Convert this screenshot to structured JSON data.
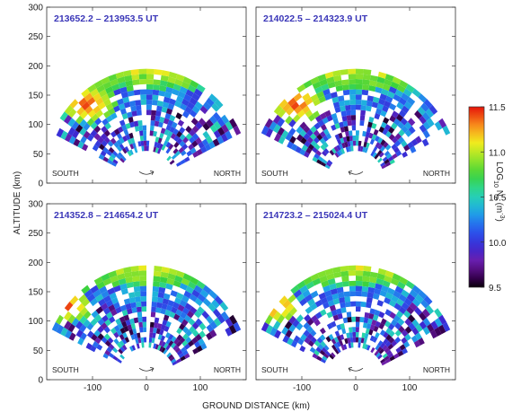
{
  "chart_data": {
    "type": "heatmap",
    "ylabel": "ALTITUDE (km)",
    "xlabel": "GROUND DISTANCE (km)",
    "x_ticks": [
      "-100",
      "0",
      "100"
    ],
    "y_ticks": [
      "0",
      "50",
      "100",
      "150",
      "200",
      "250",
      "300"
    ],
    "xlim": [
      -185,
      185
    ],
    "ylim": [
      0,
      300
    ],
    "colorbar": {
      "label": "LOG10 Ne (m-3)",
      "label_parts": {
        "pre": "LOG",
        "sub1": "10",
        "mid": " N",
        "sub2": "e",
        "post": " (m",
        "sup": "-3",
        "end": ")"
      },
      "ticks": [
        "9.5",
        "10.0",
        "10.5",
        "11.0",
        "11.5"
      ],
      "range": [
        9.5,
        11.5
      ],
      "scale": "rainbow: black-purple-blue-cyan-green-yellow-orange-red"
    },
    "panels": [
      {
        "title": "213652.2 – 213953.5 UT",
        "left_label": "SOUTH",
        "right_label": "NORTH",
        "scan_direction": "north-to-south",
        "feature": "enhanced density ~11.3-11.5 near -110 km ground distance, 110-150 km altitude; ~10.8-11.0 at 170-200 km altitude"
      },
      {
        "title": "214022.5 – 214323.9 UT",
        "left_label": "SOUTH",
        "right_label": "NORTH",
        "scan_direction": "south-to-north",
        "feature": "enhanced density ~11.2 near -110 km ground distance, 120-150 km altitude"
      },
      {
        "title": "214352.8 – 214654.2 UT",
        "left_label": "SOUTH",
        "right_label": "NORTH",
        "scan_direction": "north-to-south",
        "feature": "enhanced density ~11.3-11.5 near -150 km ground distance, 110-140 km altitude"
      },
      {
        "title": "214723.2 – 215024.4 UT",
        "left_label": "SOUTH",
        "right_label": "NORTH",
        "scan_direction": "south-to-north",
        "feature": "enhanced density ~11.3-11.5 near -150 km ground distance, 110-140 km altitude"
      }
    ]
  }
}
